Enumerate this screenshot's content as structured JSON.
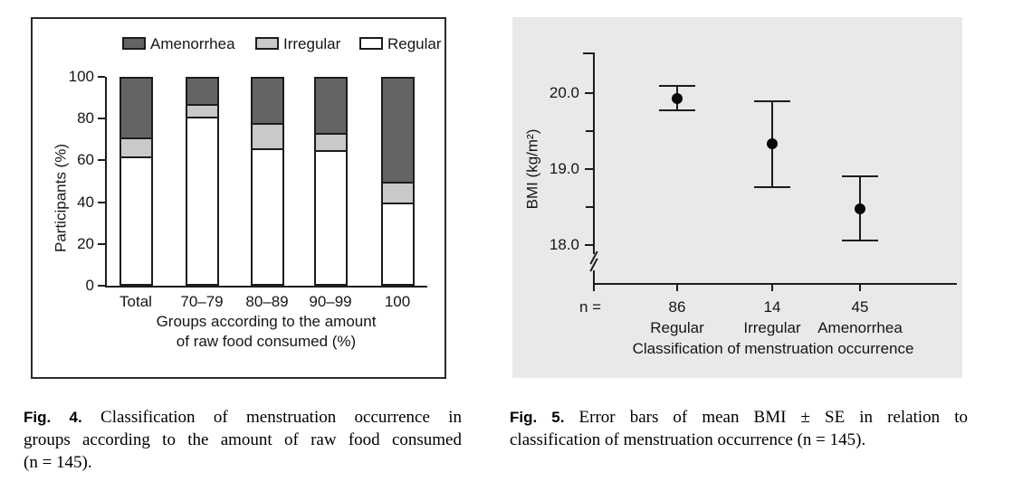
{
  "page": {
    "background": "#ffffff"
  },
  "colors": {
    "line": "#1c1c1c",
    "text": "#161616",
    "panel_bg": "#e9e9e9",
    "amenorrhea_fill": "#646464",
    "irregular_fill": "#c9c9c9",
    "regular_fill": "#ffffff"
  },
  "chart_data": [
    {
      "type": "bar",
      "stacked": true,
      "title": "",
      "categories": [
        "Total",
        "70–79",
        "80–89",
        "90–99",
        "100"
      ],
      "series": [
        {
          "name": "Regular",
          "color": "#ffffff",
          "values": [
            62,
            81,
            66,
            65,
            40
          ]
        },
        {
          "name": "Irregular",
          "color": "#c9c9c9",
          "values": [
            9,
            6,
            12,
            8,
            10
          ]
        },
        {
          "name": "Amenorrhea",
          "color": "#646464",
          "values": [
            29,
            13,
            22,
            27,
            50
          ]
        }
      ],
      "legend_order": [
        "Amenorrhea",
        "Irregular",
        "Regular"
      ],
      "legend_position": "top",
      "ylabel": "Participants (%)",
      "xlabel_lines": [
        "Groups according to the amount",
        "of raw food consumed (%)"
      ],
      "ylim": [
        0,
        100
      ],
      "yticks": [
        0,
        20,
        40,
        60,
        80,
        100
      ],
      "grid": false
    },
    {
      "type": "scatter",
      "subtype": "errorbar-mean-se",
      "title": "",
      "categories": [
        "Regular",
        "Irregular",
        "Amenorrhea"
      ],
      "n_label": "n =",
      "n_values": [
        86,
        14,
        45
      ],
      "means": [
        19.93,
        19.33,
        18.48
      ],
      "upper": [
        20.1,
        19.89,
        18.91
      ],
      "lower": [
        19.77,
        18.76,
        18.06
      ],
      "ylabel": "BMI (kg/m²)",
      "xlabel": "Classification of menstruation occurrence",
      "yticks": [
        18.0,
        19.0,
        20.0
      ],
      "ytick_labels": [
        "18.0",
        "19.0",
        "20.0"
      ],
      "yticks_minor": [
        18.5,
        19.5
      ],
      "axis_break": true,
      "ylim_display": [
        17.8,
        20.55
      ],
      "grid": false
    }
  ],
  "captions": {
    "fig4": {
      "label": "Fig. 4.",
      "lines": [
        "Classification of menstruation occurrence in",
        "groups according to the amount of raw food consumed",
        "(n = 145)."
      ]
    },
    "fig5": {
      "label": "Fig. 5.",
      "lines": [
        "Error bars of mean BMI ± SE in relation to",
        "classification of menstruation occurrence (n = 145)."
      ]
    }
  }
}
